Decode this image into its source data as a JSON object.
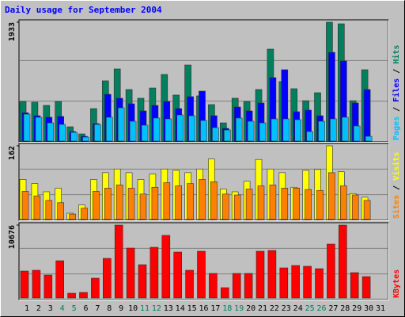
{
  "legend_separator": " / ",
  "chart_data": [
    {
      "type": "bar",
      "title": "Daily usage for September 2004",
      "ylim": [
        0,
        1933
      ],
      "yticks": [
        1933
      ],
      "series": [
        {
          "name": "Hits",
          "color": "#00805c",
          "values": [
            644,
            632,
            580,
            644,
            232,
            116,
            528,
            980,
            1173,
            838,
            696,
            863,
            1083,
            748,
            1237,
            735,
            593,
            296,
            696,
            644,
            838,
            1495,
            967,
            851,
            657,
            786,
            1933,
            1907,
            657,
            1160,
            null
          ]
        },
        {
          "name": "Files",
          "color": "#0000ff",
          "values": [
            460,
            412,
            387,
            400,
            155,
            77,
            284,
            760,
            696,
            606,
            490,
            580,
            644,
            528,
            722,
            812,
            412,
            206,
            554,
            490,
            619,
            1031,
            1160,
            477,
            503,
            412,
            1443,
            1302,
            619,
            838,
            null
          ]
        },
        {
          "name": "Pages",
          "color": "#00c0ff",
          "values": [
            438,
            387,
            296,
            271,
            142,
            64,
            271,
            387,
            541,
            322,
            258,
            374,
            361,
            425,
            412,
            335,
            219,
            180,
            374,
            322,
            296,
            361,
            361,
            348,
            155,
            322,
            361,
            387,
            245,
            77,
            null
          ]
        }
      ]
    },
    {
      "type": "bar",
      "ylim": [
        0,
        162
      ],
      "yticks": [
        162
      ],
      "series": [
        {
          "name": "Visits",
          "color": "#ffff00",
          "values": [
            88,
            79,
            61,
            69,
            14,
            32,
            88,
            103,
            111,
            103,
            88,
            100,
            111,
            108,
            103,
            111,
            133,
            67,
            61,
            84,
            132,
            111,
            103,
            71,
            108,
            110,
            162,
            105,
            57,
            49,
            null
          ]
        },
        {
          "name": "Sites",
          "color": "#ff8000",
          "values": [
            62,
            52,
            42,
            37,
            12,
            25,
            62,
            69,
            76,
            69,
            56,
            71,
            81,
            74,
            79,
            88,
            83,
            56,
            54,
            67,
            74,
            76,
            69,
            69,
            66,
            64,
            103,
            74,
            54,
            42,
            null
          ]
        }
      ]
    },
    {
      "type": "bar",
      "ylim": [
        0,
        10676
      ],
      "yticks": [
        10676
      ],
      "categories": [
        "1",
        "2",
        "3",
        "4",
        "5",
        "6",
        "7",
        "8",
        "9",
        "10",
        "11",
        "12",
        "13",
        "14",
        "15",
        "16",
        "17",
        "18",
        "19",
        "20",
        "21",
        "22",
        "23",
        "24",
        "25",
        "26",
        "27",
        "28",
        "29",
        "30",
        "31"
      ],
      "category_colors": [
        "#000000",
        "#000000",
        "#000000",
        "#00805c",
        "#00805c",
        "#000000",
        "#000000",
        "#000000",
        "#000000",
        "#000000",
        "#00805c",
        "#00805c",
        "#000000",
        "#000000",
        "#000000",
        "#000000",
        "#000000",
        "#00805c",
        "#00805c",
        "#000000",
        "#000000",
        "#000000",
        "#000000",
        "#000000",
        "#00805c",
        "#00805c",
        "#000000",
        "#000000",
        "#000000",
        "#000000",
        "#000000"
      ],
      "series": [
        {
          "name": "KBytes",
          "color": "#ff0000",
          "values": [
            3944,
            4060,
            3364,
            5452,
            696,
            812,
            2900,
            5800,
            10676,
            7308,
            4872,
            7424,
            9164,
            6728,
            4060,
            6844,
            3596,
            1508,
            3596,
            3596,
            6844,
            6960,
            4408,
            4756,
            4640,
            4292,
            7888,
            10676,
            3712,
            3132,
            null
          ]
        }
      ]
    }
  ]
}
